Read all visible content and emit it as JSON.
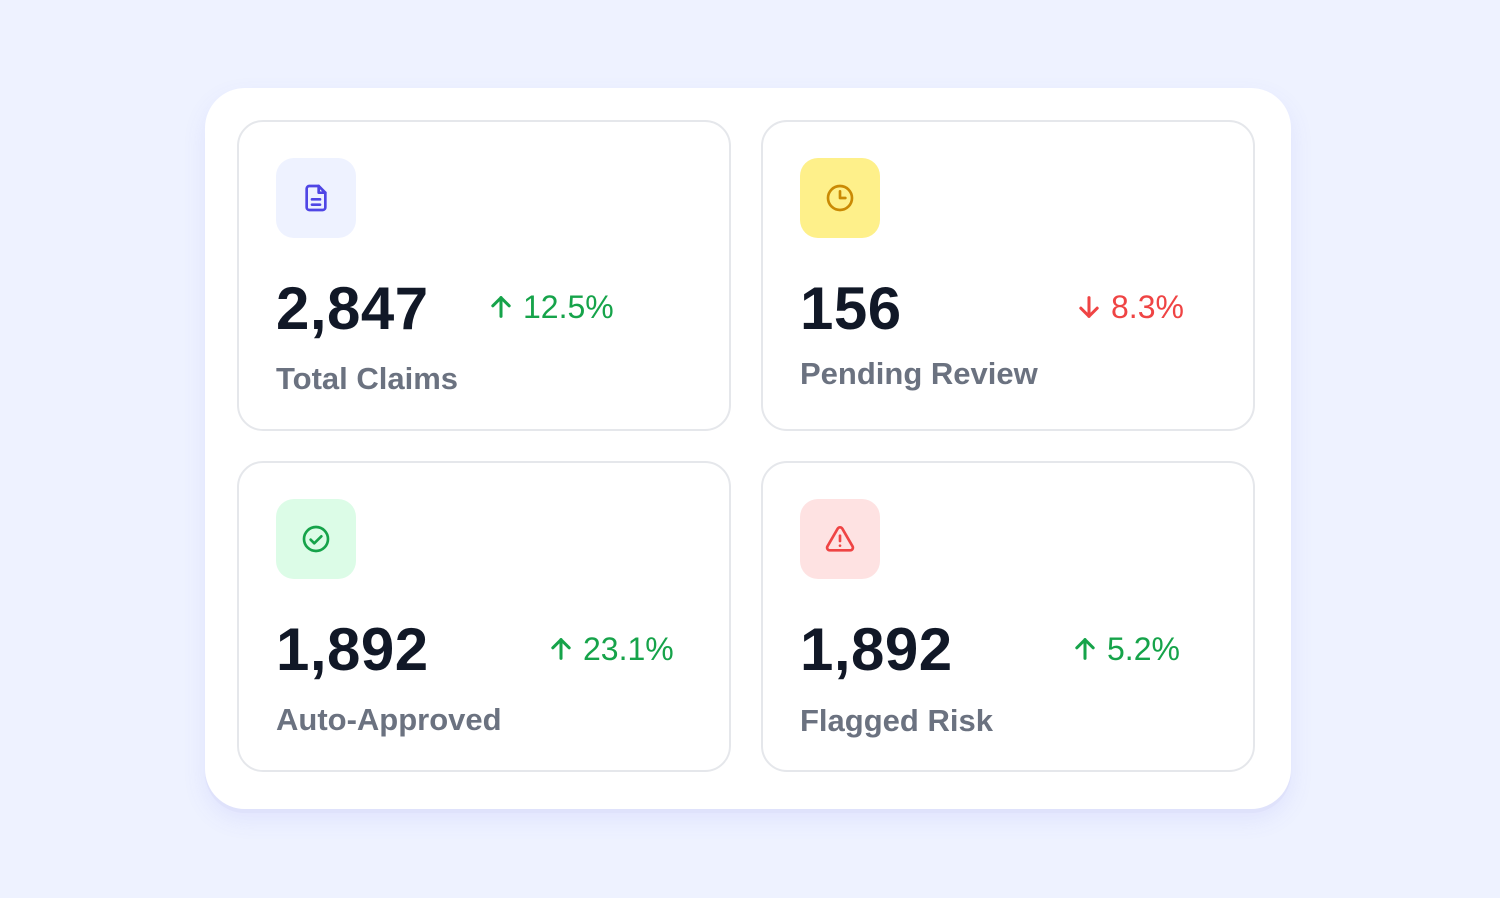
{
  "cards": [
    {
      "value": "2,847",
      "label": "Total Claims",
      "trend": {
        "direction": "up",
        "text": "12.5%"
      },
      "icon": "document-icon",
      "icon_bg": "#eef2ff",
      "icon_color": "#4f46e5"
    },
    {
      "value": "156",
      "label": "Pending Review",
      "trend": {
        "direction": "down",
        "text": "8.3%"
      },
      "icon": "clock-icon",
      "icon_bg": "#fef08a",
      "icon_color": "#ca8a04"
    },
    {
      "value": "1,892",
      "label": "Auto-Approved",
      "trend": {
        "direction": "up",
        "text": "23.1%"
      },
      "icon": "check-circle-icon",
      "icon_bg": "#dcfce7",
      "icon_color": "#16a34a"
    },
    {
      "value": "1,892",
      "label": "Flagged Risk",
      "trend": {
        "direction": "up",
        "text": "5.2%"
      },
      "icon": "warning-triangle-icon",
      "icon_bg": "#fee2e2",
      "icon_color": "#ef4444"
    }
  ],
  "colors": {
    "page_background": "#eef2ff",
    "trend_up": "#16a34a",
    "trend_down": "#ef4444",
    "value_text": "#111827",
    "label_text": "#6b7280"
  }
}
